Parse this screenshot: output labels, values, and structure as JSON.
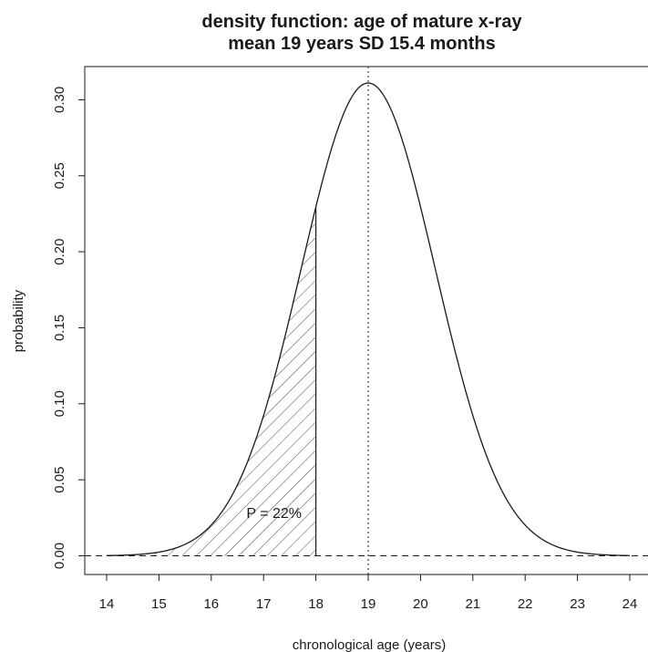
{
  "chart_data": {
    "type": "area",
    "title": "density function: age of mature x-ray",
    "subtitle": "mean 19 years SD 15.4 months",
    "xlabel": "chronological age (years)",
    "ylabel": "probability",
    "xlim": [
      13.6,
      24.4
    ],
    "ylim": [
      -0.012,
      0.322
    ],
    "x_ticks": [
      "14",
      "15",
      "16",
      "17",
      "18",
      "19",
      "20",
      "21",
      "22",
      "23",
      "24"
    ],
    "y_ticks": [
      "0.00",
      "0.05",
      "0.10",
      "0.15",
      "0.20",
      "0.25",
      "0.30"
    ],
    "curve": {
      "x_range": [
        14,
        24
      ],
      "distribution": "normal",
      "mean": 19,
      "sd": 1.2833,
      "peak": 0.311
    },
    "shaded_region": {
      "from": 14,
      "to": 18,
      "pattern": "hatched"
    },
    "annotations": [
      {
        "text": "P = 22%",
        "x": 17.2,
        "y": 0.028
      }
    ],
    "reference_lines": [
      {
        "orientation": "vertical",
        "value": 19,
        "style": "dotted"
      },
      {
        "orientation": "horizontal",
        "value": 0,
        "style": "dashed"
      }
    ],
    "grid": false,
    "legend": "none"
  }
}
